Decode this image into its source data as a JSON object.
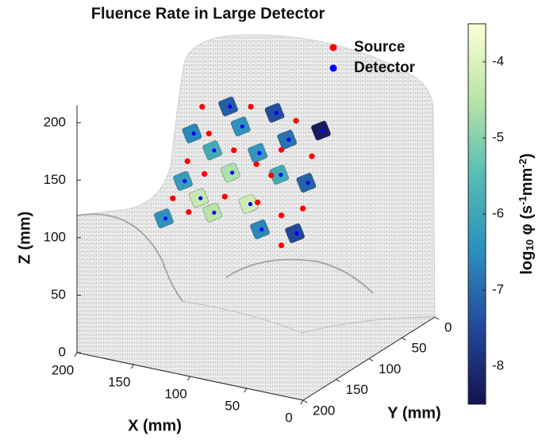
{
  "chart_data": {
    "type": "scatter3d",
    "title": "Fluence Rate in Large Detector",
    "xlabel": "X (mm)",
    "ylabel": "Y (mm)",
    "zlabel": "Z (mm)",
    "xlim": [
      0,
      200
    ],
    "xticks": [
      0,
      50,
      100,
      150,
      200
    ],
    "ylim": [
      0,
      200
    ],
    "yticks": [
      0,
      50,
      100,
      150,
      200
    ],
    "zlim": [
      0,
      215
    ],
    "zticks": [
      0,
      50,
      100,
      150,
      200
    ],
    "clim": [
      -8.5,
      -3.5
    ],
    "cticks": [
      -8,
      -7,
      -6,
      -5,
      -4
    ],
    "colormap": [
      "#14134e",
      "#22479a",
      "#2a8ebd",
      "#55bdb4",
      "#b8e4a8",
      "#ffffd6"
    ],
    "colorbar_label": [
      "log",
      "10",
      " φ (s",
      "-1",
      "mm",
      "-2",
      ")"
    ],
    "series": [
      {
        "name": "Source",
        "color": "#ff0000",
        "x": [
          165,
          122,
          82,
          159,
          137,
          95,
          178,
          117,
          68,
          163,
          104,
          145,
          177,
          116,
          76,
          95,
          95,
          191
        ],
        "y": [
          70,
          70,
          70,
          70,
          70,
          70,
          70,
          70,
          70,
          70,
          70,
          70,
          70,
          70,
          70,
          70,
          70,
          70
        ],
        "z": [
          174,
          183,
          179,
          152,
          142,
          151,
          124,
          134,
          151,
          116,
          127,
          100,
          80,
          101,
          104,
          94,
          68,
          89
        ]
      },
      {
        "name": "Detector",
        "color": "#0000ff",
        "x": [
          142,
          101,
          60,
          174,
          131,
          90,
          156,
          116,
          73,
          182,
          140,
          97,
          168,
          124,
          156,
          199,
          114,
          83
        ],
        "y": [
          70,
          70,
          70,
          70,
          70,
          70,
          70,
          70,
          70,
          70,
          70,
          70,
          70,
          70,
          70,
          70,
          70,
          70
        ],
        "z": [
          179,
          182,
          175,
          149,
          164,
          161,
          138,
          144,
          127,
          106,
          122,
          129,
          94,
          98,
          84,
          70,
          78,
          81
        ],
        "values": [
          -7.2,
          -7.4,
          -8.3,
          -6.6,
          -6.4,
          -6.9,
          -5.9,
          -6.3,
          -7.1,
          -6.2,
          -4.6,
          -5.9,
          -4.3,
          -4.2,
          -4.5,
          -6.4,
          -6.6,
          -7.5
        ]
      }
    ]
  }
}
